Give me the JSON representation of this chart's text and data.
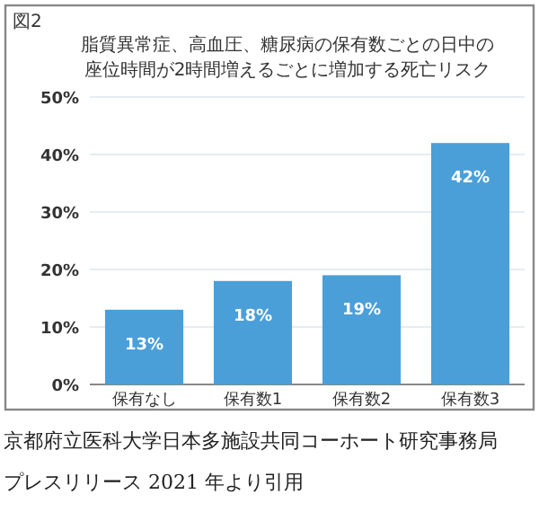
{
  "chart_data": {
    "type": "bar",
    "title": "図2",
    "subtitle": "脂質異常症、高血圧、糖尿病の保有数ごとの日中の座位時間が2時間増えるごとに増加する死亡リスク",
    "categories": [
      "保有なし",
      "保有数1",
      "保有数2",
      "保有数3"
    ],
    "values": [
      13,
      18,
      19,
      42
    ],
    "color": "#4a9fd9",
    "value_labels": [
      "13%",
      "18%",
      "19%",
      "42%"
    ],
    "ylim": [
      0,
      50
    ],
    "yticks": [
      {
        "value": 0,
        "label": "0%"
      },
      {
        "value": 10,
        "label": "10%"
      },
      {
        "value": 20,
        "label": "20%"
      },
      {
        "value": 30,
        "label": "30%"
      },
      {
        "value": 40,
        "label": "40%"
      },
      {
        "value": 50,
        "label": "50%"
      }
    ],
    "grid": "y",
    "annotations": [
      "京都府立医科大学日本多施設共同コーホート研究事務局",
      "プレスリリース 2021 年より引用"
    ]
  }
}
